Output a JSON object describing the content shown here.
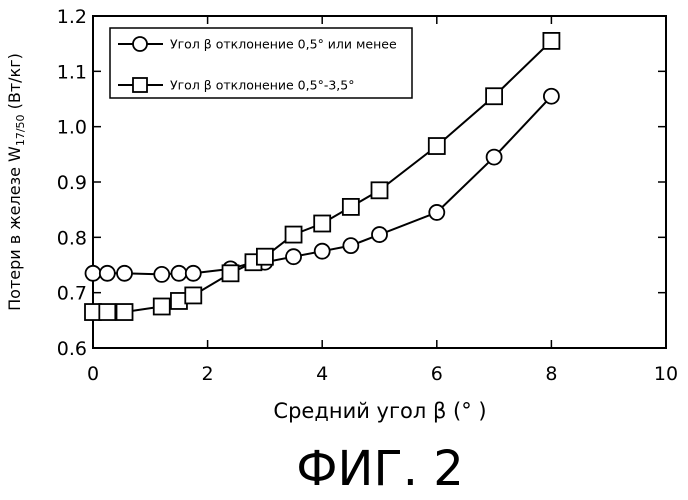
{
  "chart_data": {
    "type": "line",
    "xlabel": "Средний угол β (°  )",
    "ylabel_main": "Потери в железе W",
    "ylabel_sub": "17/50",
    "ylabel_unit": " (Вт/кг)",
    "xlim": [
      0,
      10
    ],
    "ylim": [
      0.6,
      1.2
    ],
    "xticks": [
      "0",
      "2",
      "4",
      "6",
      "8",
      "10"
    ],
    "yticks": [
      "0.6",
      "0.7",
      "0.8",
      "0.9",
      "1.0",
      "1.1",
      "1.2"
    ],
    "grid": false,
    "legend_position": "top-left",
    "series": [
      {
        "name": "Угол β отклонение 0,5° или менее",
        "marker": "circle",
        "x": [
          0,
          0.25,
          0.55,
          1.2,
          1.5,
          1.75,
          2.4,
          2.8,
          3,
          3.5,
          4,
          4.5,
          5,
          6,
          7,
          8
        ],
        "y": [
          0.735,
          0.735,
          0.735,
          0.733,
          0.735,
          0.735,
          0.743,
          0.755,
          0.755,
          0.765,
          0.775,
          0.785,
          0.805,
          0.845,
          0.945,
          1.055
        ]
      },
      {
        "name": "Угол β отклонение 0,5°-3,5°",
        "marker": "square",
        "x": [
          0,
          0.25,
          0.55,
          1.2,
          1.5,
          1.75,
          2.4,
          2.8,
          3,
          3.5,
          4,
          4.5,
          5,
          6,
          7,
          8
        ],
        "y": [
          0.665,
          0.665,
          0.665,
          0.675,
          0.685,
          0.695,
          0.735,
          0.755,
          0.765,
          0.805,
          0.825,
          0.855,
          0.885,
          0.965,
          1.055,
          1.155
        ]
      }
    ]
  },
  "caption": "ФИГ. 2"
}
